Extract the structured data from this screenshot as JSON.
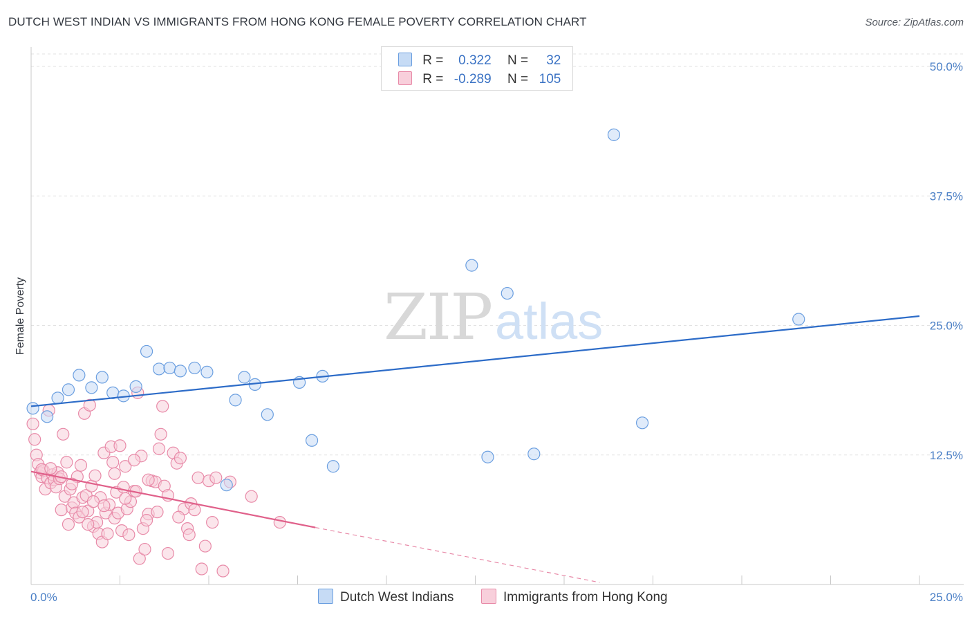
{
  "header": {
    "title": "DUTCH WEST INDIAN VS IMMIGRANTS FROM HONG KONG FEMALE POVERTY CORRELATION CHART",
    "source": "Source: ZipAtlas.com"
  },
  "watermark": {
    "zip": "ZIP",
    "atlas": "atlas"
  },
  "legend": {
    "rows": [
      {
        "r_label": "R =",
        "r_value": "0.322",
        "n_label": "N =",
        "n_value": "32"
      },
      {
        "r_label": "R =",
        "r_value": "-0.289",
        "n_label": "N =",
        "n_value": "105"
      }
    ]
  },
  "chart_data": {
    "type": "scatter",
    "title": "DUTCH WEST INDIAN VS IMMIGRANTS FROM HONG KONG FEMALE POVERTY CORRELATION CHART",
    "ylabel": "Female Poverty",
    "xlabel": "",
    "xlim": [
      0,
      25
    ],
    "ylim": [
      0,
      50
    ],
    "x_tick_labels": [
      "0.0%",
      "25.0%"
    ],
    "y_ticks": [
      12.5,
      25.0,
      37.5,
      50.0
    ],
    "y_tick_labels": [
      "12.5%",
      "25.0%",
      "37.5%",
      "50.0%"
    ],
    "grid": true,
    "legend_position": "top-center",
    "series": [
      {
        "name": "Dutch West Indians",
        "color": "#6b9fe0",
        "fill": "#c6dbf5",
        "r": 0.322,
        "n": 32,
        "trend": {
          "x": [
            0,
            25
          ],
          "y": [
            17.2,
            25.9
          ]
        },
        "points": [
          [
            0.05,
            17.0
          ],
          [
            0.45,
            16.2
          ],
          [
            0.75,
            18.0
          ],
          [
            1.05,
            18.8
          ],
          [
            1.35,
            20.2
          ],
          [
            1.7,
            19.0
          ],
          [
            2.0,
            20.0
          ],
          [
            2.3,
            18.5
          ],
          [
            2.6,
            18.2
          ],
          [
            2.95,
            19.1
          ],
          [
            3.25,
            22.5
          ],
          [
            3.6,
            20.8
          ],
          [
            3.9,
            20.9
          ],
          [
            4.2,
            20.6
          ],
          [
            4.6,
            20.9
          ],
          [
            4.95,
            20.5
          ],
          [
            5.5,
            9.6
          ],
          [
            5.75,
            17.8
          ],
          [
            6.0,
            20.0
          ],
          [
            6.3,
            19.3
          ],
          [
            6.65,
            16.4
          ],
          [
            7.55,
            19.5
          ],
          [
            7.9,
            13.9
          ],
          [
            8.2,
            20.1
          ],
          [
            8.5,
            11.4
          ],
          [
            12.4,
            30.8
          ],
          [
            12.85,
            12.3
          ],
          [
            13.4,
            28.1
          ],
          [
            14.15,
            12.6
          ],
          [
            16.4,
            43.4
          ],
          [
            17.2,
            15.6
          ],
          [
            21.6,
            25.6
          ]
        ]
      },
      {
        "name": "Immigrants from Hong Kong",
        "color": "#e88aa8",
        "fill": "#f8cfdb",
        "r": -0.289,
        "n": 105,
        "trend": {
          "x": [
            0,
            8.0
          ],
          "y": [
            10.9,
            5.5
          ]
        },
        "trend_dashed": {
          "x": [
            8.0,
            16.0
          ],
          "y": [
            5.5,
            0.2
          ]
        },
        "points": [
          [
            0.05,
            15.5
          ],
          [
            0.1,
            14.0
          ],
          [
            0.15,
            12.5
          ],
          [
            0.2,
            11.6
          ],
          [
            0.25,
            10.8
          ],
          [
            0.3,
            10.4
          ],
          [
            0.35,
            11.0
          ],
          [
            0.4,
            9.2
          ],
          [
            0.45,
            10.3
          ],
          [
            0.5,
            16.8
          ],
          [
            0.55,
            9.8
          ],
          [
            0.6,
            10.6
          ],
          [
            0.65,
            10.1
          ],
          [
            0.7,
            9.4
          ],
          [
            0.75,
            10.8
          ],
          [
            0.8,
            10.2
          ],
          [
            0.85,
            7.2
          ],
          [
            0.9,
            14.5
          ],
          [
            0.95,
            8.5
          ],
          [
            1.0,
            11.8
          ],
          [
            1.05,
            5.8
          ],
          [
            1.1,
            9.2
          ],
          [
            1.15,
            7.4
          ],
          [
            1.2,
            7.9
          ],
          [
            1.25,
            6.9
          ],
          [
            1.3,
            10.4
          ],
          [
            1.35,
            6.5
          ],
          [
            1.4,
            11.5
          ],
          [
            1.45,
            8.4
          ],
          [
            1.5,
            16.5
          ],
          [
            1.55,
            8.6
          ],
          [
            1.6,
            7.1
          ],
          [
            1.65,
            17.3
          ],
          [
            1.7,
            9.5
          ],
          [
            1.75,
            5.6
          ],
          [
            1.8,
            10.5
          ],
          [
            1.85,
            6.0
          ],
          [
            1.9,
            4.9
          ],
          [
            1.95,
            8.4
          ],
          [
            2.0,
            4.1
          ],
          [
            2.05,
            12.7
          ],
          [
            2.1,
            6.9
          ],
          [
            2.15,
            4.9
          ],
          [
            2.2,
            7.7
          ],
          [
            2.25,
            13.3
          ],
          [
            2.3,
            11.8
          ],
          [
            2.35,
            6.4
          ],
          [
            2.4,
            8.9
          ],
          [
            2.45,
            6.9
          ],
          [
            2.5,
            13.4
          ],
          [
            2.55,
            5.2
          ],
          [
            2.6,
            9.4
          ],
          [
            2.65,
            11.4
          ],
          [
            2.7,
            7.3
          ],
          [
            2.75,
            4.8
          ],
          [
            2.8,
            8.0
          ],
          [
            2.9,
            9.0
          ],
          [
            3.0,
            18.5
          ],
          [
            3.05,
            2.5
          ],
          [
            3.1,
            12.4
          ],
          [
            3.15,
            5.4
          ],
          [
            3.2,
            3.4
          ],
          [
            3.3,
            6.8
          ],
          [
            3.4,
            10.0
          ],
          [
            3.5,
            9.9
          ],
          [
            3.6,
            13.1
          ],
          [
            3.65,
            14.5
          ],
          [
            3.7,
            17.2
          ],
          [
            3.75,
            9.5
          ],
          [
            3.85,
            3.0
          ],
          [
            4.0,
            12.7
          ],
          [
            4.1,
            11.7
          ],
          [
            4.2,
            12.2
          ],
          [
            4.3,
            7.3
          ],
          [
            4.4,
            5.4
          ],
          [
            4.5,
            7.8
          ],
          [
            4.6,
            7.2
          ],
          [
            4.7,
            10.3
          ],
          [
            4.8,
            1.5
          ],
          [
            4.9,
            3.7
          ],
          [
            5.0,
            10.0
          ],
          [
            5.1,
            6.0
          ],
          [
            5.2,
            10.3
          ],
          [
            5.4,
            1.3
          ],
          [
            5.6,
            9.9
          ],
          [
            0.3,
            11.1
          ],
          [
            0.55,
            11.2
          ],
          [
            0.85,
            10.4
          ],
          [
            1.15,
            9.7
          ],
          [
            1.45,
            7.0
          ],
          [
            1.75,
            8.0
          ],
          [
            2.05,
            7.6
          ],
          [
            2.35,
            10.7
          ],
          [
            2.65,
            8.3
          ],
          [
            2.95,
            9.0
          ],
          [
            3.25,
            6.2
          ],
          [
            3.55,
            7.0
          ],
          [
            3.85,
            8.6
          ],
          [
            4.15,
            6.5
          ],
          [
            4.45,
            4.8
          ],
          [
            1.6,
            5.8
          ],
          [
            2.9,
            12.0
          ],
          [
            3.3,
            10.1
          ],
          [
            6.2,
            8.5
          ],
          [
            7.0,
            6.0
          ]
        ]
      }
    ]
  },
  "bottom_legend": [
    "Dutch West Indians",
    "Immigrants from Hong Kong"
  ]
}
